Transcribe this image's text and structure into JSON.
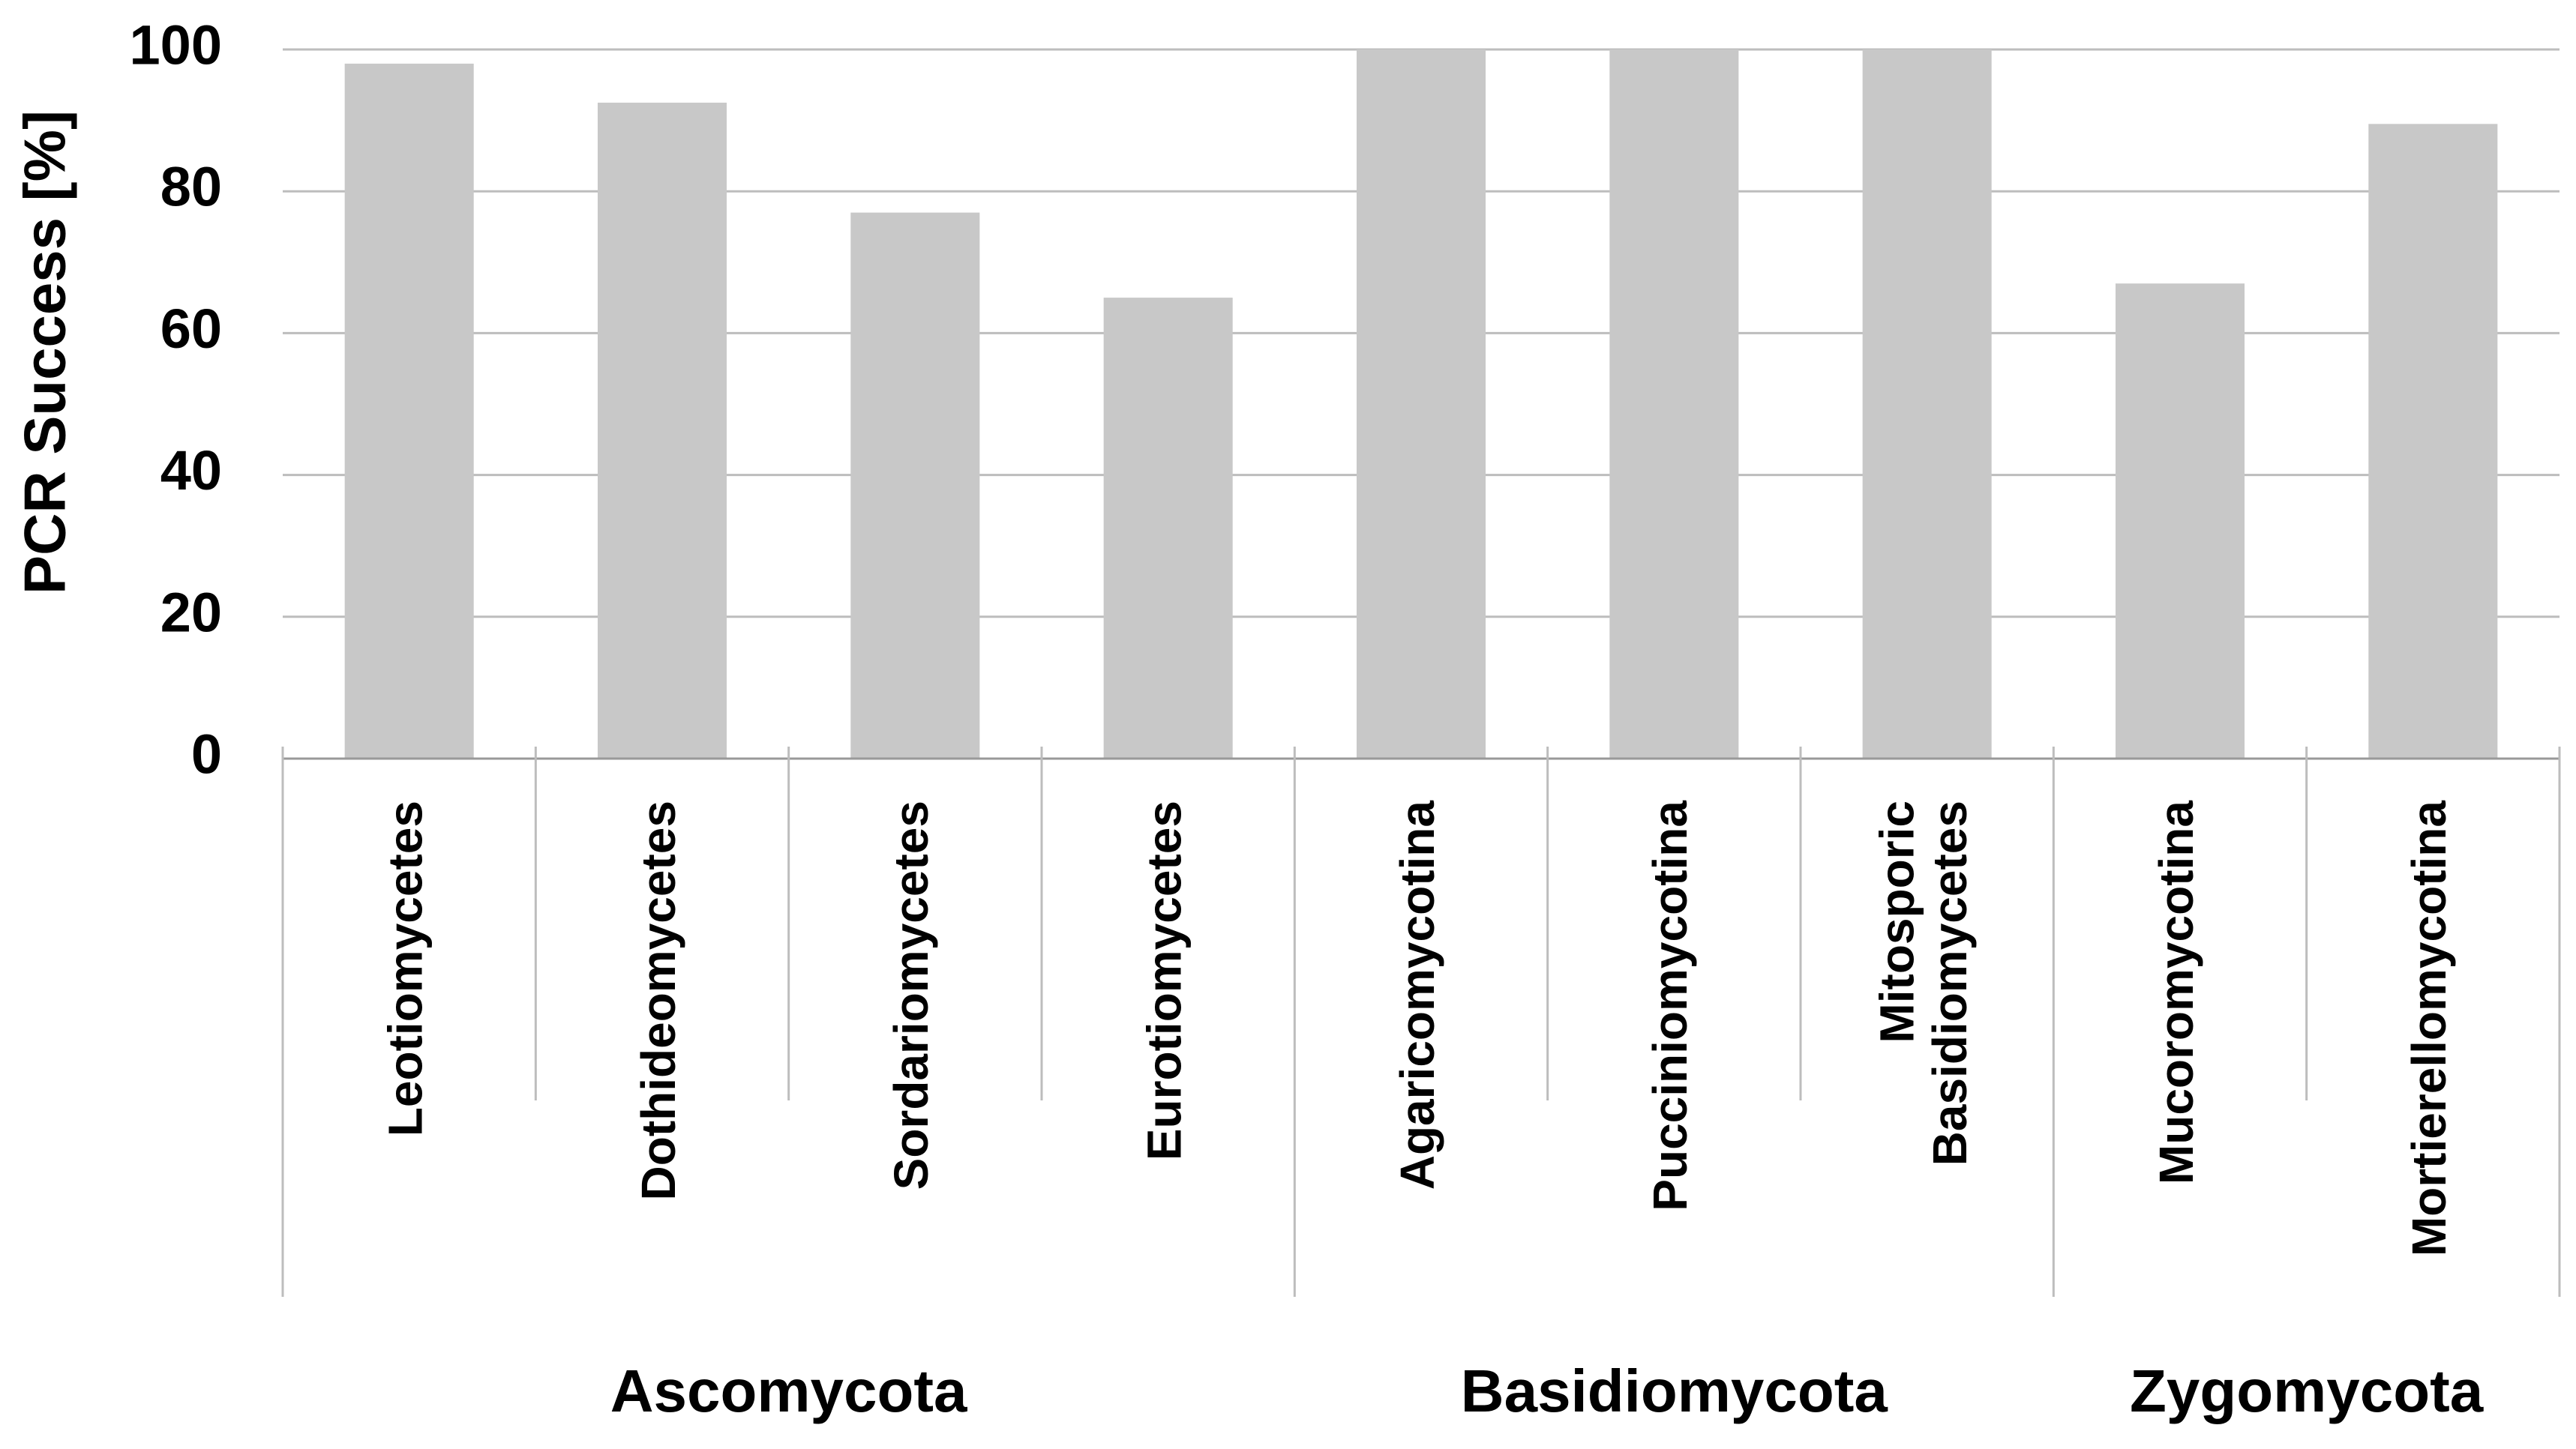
{
  "chart_data": {
    "type": "bar",
    "y_label": "PCR Success [%]",
    "categories": [
      "Leotiomycetes",
      "Dothideomycetes",
      "Sordariomycetes",
      "Eurotiomycetes",
      "Agaricomycotina",
      "Pucciniomycotina",
      "Mitosporic Basidiomycetes",
      "Mucoromycotina",
      "Mortierellomycotina"
    ],
    "values": [
      98,
      92.5,
      77,
      65,
      100,
      100,
      100,
      67,
      89.5
    ],
    "groups": [
      {
        "name": "Ascomycota",
        "count": 4
      },
      {
        "name": "Basidiomycota",
        "count": 3
      },
      {
        "name": "Zygomycota",
        "count": 2
      }
    ],
    "color": "#c8c8c8",
    "ylim": [
      0,
      100
    ],
    "yticks": [
      0,
      20,
      40,
      60,
      80,
      100
    ],
    "grid": true
  }
}
